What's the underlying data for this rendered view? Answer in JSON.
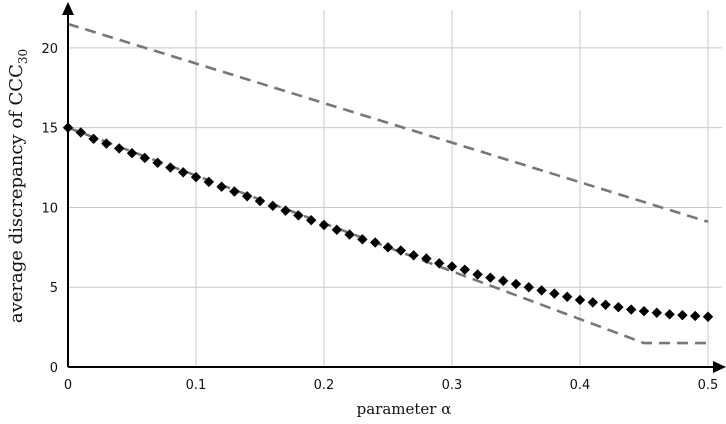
{
  "chart_data": {
    "type": "line",
    "xlabel": "parameter α",
    "ylabel_main": "average discrepancy of CCC",
    "ylabel_sub": "30",
    "xlim": [
      0,
      0.5
    ],
    "ylim": [
      0,
      22.5
    ],
    "xticks": [
      0,
      0.1,
      0.2,
      0.3,
      0.4,
      0.5
    ],
    "xtick_labels": [
      "0",
      "0.1",
      "0.2",
      "0.3",
      "0.4",
      "0.5"
    ],
    "yticks": [
      0,
      5,
      10,
      15,
      20
    ],
    "ytick_labels": [
      "0",
      "5",
      "10",
      "15",
      "20"
    ],
    "grid": true,
    "series": [
      {
        "style": "dashed",
        "color": "#777777",
        "x": [
          0,
          0.5
        ],
        "y": [
          21.5,
          9.1
        ]
      },
      {
        "style": "dashed",
        "color": "#777777",
        "x": [
          0,
          0.45,
          0.5
        ],
        "y": [
          15.0,
          1.5,
          1.5
        ]
      },
      {
        "style": "diamond-markers",
        "color": "#000000",
        "x": [
          0,
          0.01,
          0.02,
          0.03,
          0.04,
          0.05,
          0.06,
          0.07,
          0.08,
          0.09,
          0.1,
          0.11,
          0.12,
          0.13,
          0.14,
          0.15,
          0.16,
          0.17,
          0.18,
          0.19,
          0.2,
          0.21,
          0.22,
          0.23,
          0.24,
          0.25,
          0.26,
          0.27,
          0.28,
          0.29,
          0.3,
          0.31,
          0.32,
          0.33,
          0.34,
          0.35,
          0.36,
          0.37,
          0.38,
          0.39,
          0.4,
          0.41,
          0.42,
          0.43,
          0.44,
          0.45,
          0.46,
          0.47,
          0.48,
          0.49,
          0.5
        ],
        "y": [
          15.0,
          14.7,
          14.3,
          14.0,
          13.7,
          13.4,
          13.1,
          12.8,
          12.5,
          12.2,
          11.9,
          11.6,
          11.3,
          11.0,
          10.7,
          10.4,
          10.1,
          9.8,
          9.5,
          9.2,
          8.9,
          8.6,
          8.3,
          8.0,
          7.8,
          7.5,
          7.3,
          7.0,
          6.8,
          6.5,
          6.3,
          6.1,
          5.8,
          5.6,
          5.4,
          5.2,
          5.0,
          4.8,
          4.6,
          4.4,
          4.2,
          4.05,
          3.9,
          3.75,
          3.6,
          3.5,
          3.4,
          3.3,
          3.25,
          3.2,
          3.15
        ]
      }
    ]
  }
}
